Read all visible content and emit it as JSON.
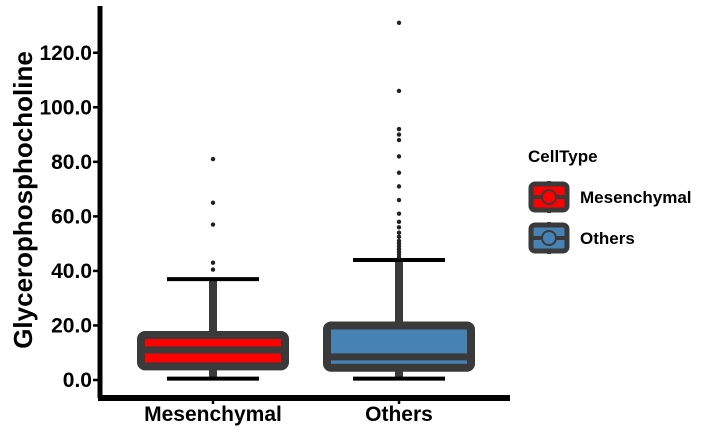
{
  "chart_data": {
    "type": "box",
    "title": "",
    "xlabel": "",
    "ylabel": "Glycerophosphocholine",
    "ylim": [
      -3,
      137
    ],
    "yticks": [
      "0.0",
      "20.0",
      "40.0",
      "60.0",
      "80.0",
      "100.0",
      "120.0"
    ],
    "ytick_values": [
      0,
      20,
      40,
      60,
      80,
      100,
      120
    ],
    "categories": [
      "Mesenchymal",
      "Others"
    ],
    "grid": false,
    "legend": {
      "title": "CellType",
      "position": "right",
      "entries": [
        {
          "name": "Mesenchymal",
          "color": "#ff0000"
        },
        {
          "name": "Others",
          "color": "#4682b4"
        }
      ]
    },
    "series": [
      {
        "name": "Mesenchymal",
        "color": "#ff0000",
        "whisker_low": 0.5,
        "q1": 5,
        "median": 11,
        "q3": 16.5,
        "whisker_high": 37,
        "outliers": [
          40.5,
          43,
          57,
          65,
          81
        ]
      },
      {
        "name": "Others",
        "color": "#4682b4",
        "whisker_low": 0.5,
        "q1": 4.5,
        "median": 8.5,
        "q3": 20,
        "whisker_high": 44,
        "outliers": [
          45,
          46,
          47,
          48,
          49,
          50,
          51,
          52.5,
          54,
          56,
          58,
          61,
          66,
          71,
          76,
          82,
          88,
          90,
          92,
          106,
          131
        ]
      }
    ]
  }
}
